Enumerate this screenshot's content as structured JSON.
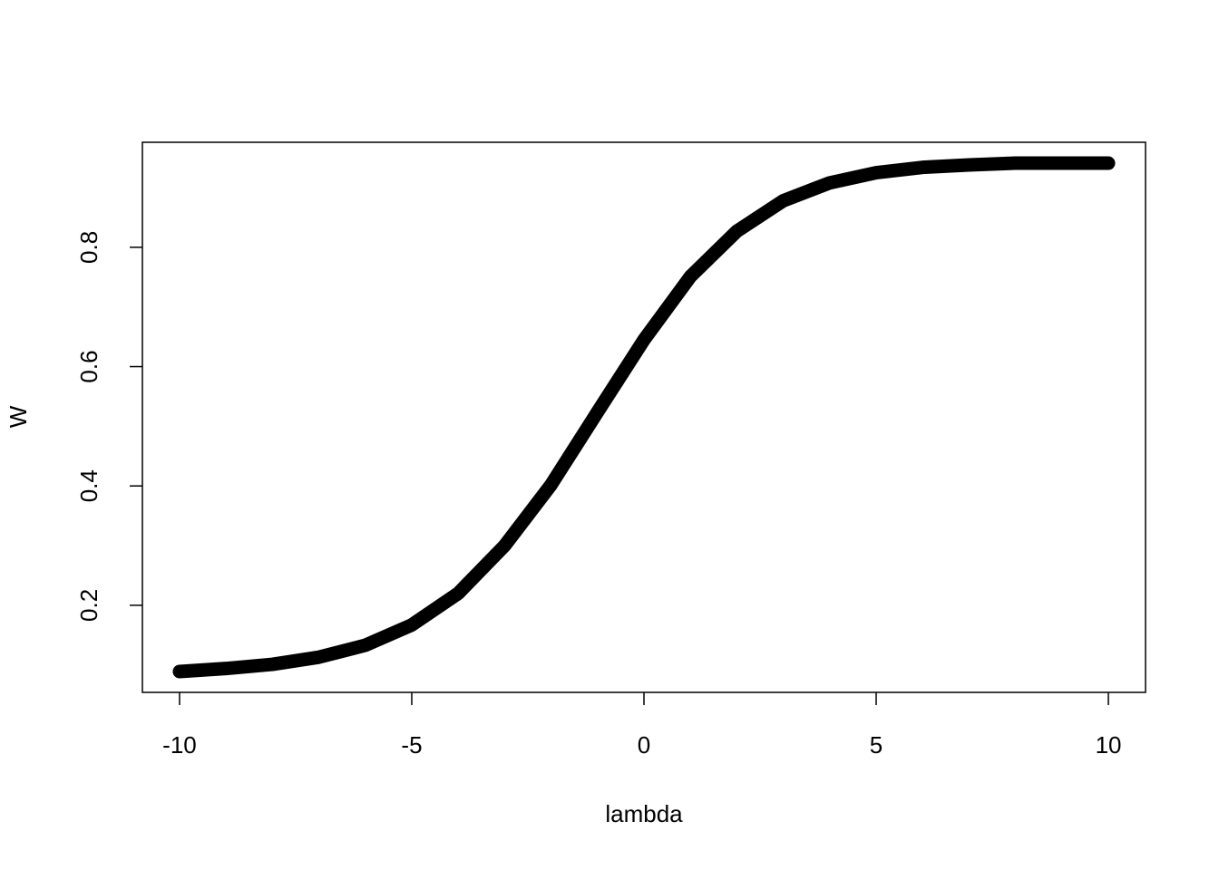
{
  "chart_data": {
    "type": "line",
    "x_label": "lambda",
    "y_label": "W",
    "x": [
      -10,
      -9,
      -8,
      -7,
      -6,
      -5,
      -4,
      -3,
      -2,
      -1,
      0,
      1,
      2,
      3,
      4,
      5,
      6,
      7,
      8,
      9,
      10
    ],
    "values": [
      0.089,
      0.094,
      0.101,
      0.113,
      0.133,
      0.167,
      0.22,
      0.3,
      0.402,
      0.524,
      0.645,
      0.751,
      0.827,
      0.878,
      0.908,
      0.925,
      0.934,
      0.938,
      0.941,
      0.941,
      0.941
    ],
    "color": "#000000",
    "xlim": [
      -10.8,
      10.8
    ],
    "xticks": [
      -10,
      -5,
      0,
      5,
      10
    ],
    "ylim": [
      0.054,
      0.976
    ],
    "yticks": [
      0.2,
      0.4,
      0.6,
      0.8
    ],
    "grid": false
  }
}
